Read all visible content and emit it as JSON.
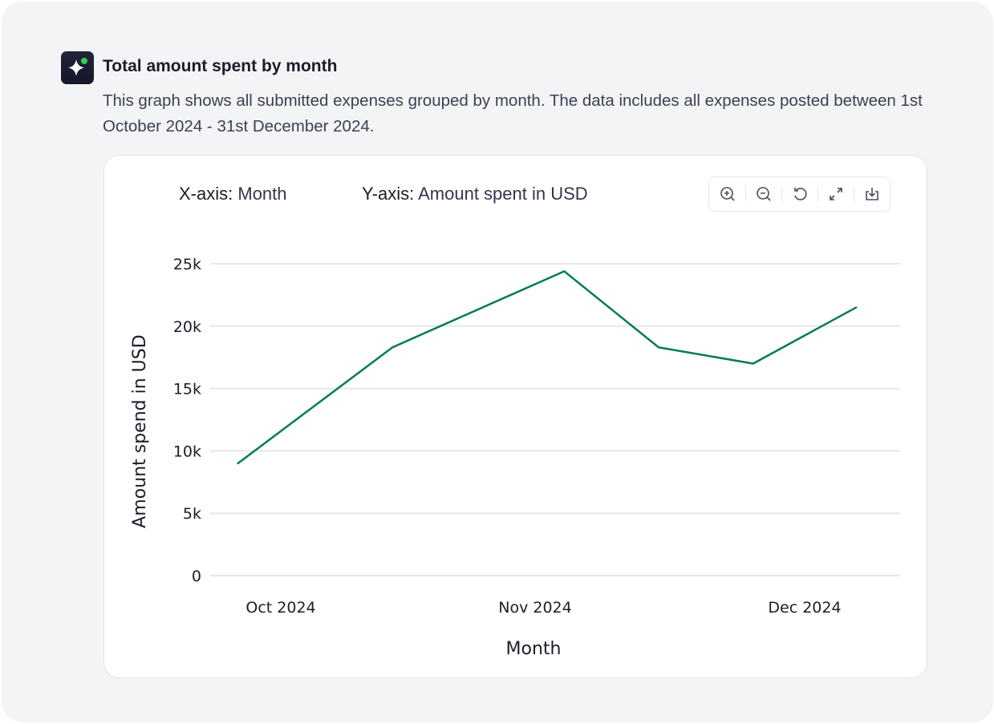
{
  "header": {
    "icon": "sparkle-icon",
    "title": "Total amount spent by month",
    "description": "This graph shows all submitted expenses grouped by month. The data includes all expenses posted between 1st October 2024 - 31st December 2024."
  },
  "legend": {
    "x_prefix": "X-axis:",
    "x_value": "Month",
    "y_prefix": "Y-axis:",
    "y_value": "Amount spent in USD"
  },
  "toolbar": [
    "zoom-in-icon",
    "zoom-out-icon",
    "reset-icon",
    "expand-icon",
    "download-icon"
  ],
  "colors": {
    "line": "#067d48",
    "grid": "#e5e7eb",
    "accent_dot": "#2fd24f"
  },
  "chart_data": {
    "type": "line",
    "title": "Total amount spent by month",
    "xlabel": "Month",
    "ylabel": "Amount spend in USD",
    "x_ticks": [
      "Oct 2024",
      "Nov 2024",
      "Dec 2024"
    ],
    "y_ticks": [
      "0",
      "5k",
      "10k",
      "15k",
      "20k",
      "25k"
    ],
    "ylim": [
      0,
      25000
    ],
    "grid": true,
    "x": [
      "2024-09-26",
      "2024-10-14",
      "2024-11-03",
      "2024-11-14",
      "2024-11-25",
      "2024-12-07"
    ],
    "values": [
      9000,
      18300,
      24400,
      18300,
      17000,
      21500
    ]
  }
}
